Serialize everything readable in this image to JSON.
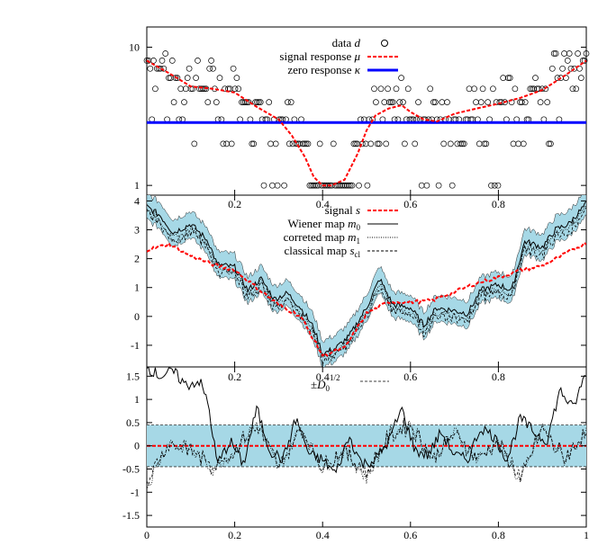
{
  "chart_data": [
    {
      "type": "scatter",
      "panel": "top",
      "y_scale": "log",
      "ylim": [
        0.85,
        14
      ],
      "xlim": [
        0,
        1
      ],
      "yticks": [
        {
          "value": 1,
          "label": "1"
        },
        {
          "value": 10,
          "label": "10"
        }
      ],
      "xticks": [
        {
          "value": 0.2,
          "label": "0.2"
        },
        {
          "value": 0.4,
          "label": "0.4"
        },
        {
          "value": 0.6,
          "label": "0.6"
        },
        {
          "value": 0.8,
          "label": "0.8"
        }
      ],
      "legend_position": "top-center",
      "legend": [
        {
          "label": "data d",
          "style": "circle"
        },
        {
          "label": "signal response μ",
          "style": "red-dashed"
        },
        {
          "label": "zero response κ",
          "style": "blue-solid"
        }
      ],
      "signal_response": {
        "x": [
          0,
          0.05,
          0.1,
          0.15,
          0.2,
          0.25,
          0.3,
          0.33,
          0.36,
          0.38,
          0.4,
          0.42,
          0.45,
          0.48,
          0.5,
          0.52,
          0.55,
          0.58,
          0.6,
          0.63,
          0.66,
          0.7,
          0.75,
          0.8,
          0.85,
          0.9,
          0.95,
          1
        ],
        "y": [
          8.0,
          6.5,
          5.2,
          5.0,
          4.7,
          3.7,
          3.0,
          2.3,
          1.6,
          1.15,
          1.0,
          1.0,
          1.1,
          1.7,
          2.5,
          3.2,
          3.6,
          3.8,
          3.4,
          3.0,
          2.9,
          3.3,
          3.6,
          3.9,
          4.3,
          4.9,
          6.2,
          8.0
        ]
      },
      "zero_response": 2.85,
      "data_levels": [
        1,
        2,
        3,
        4,
        5,
        6,
        7,
        8,
        9
      ]
    },
    {
      "type": "line",
      "panel": "middle",
      "ylim": [
        -1.75,
        4.2
      ],
      "xlim": [
        0,
        1
      ],
      "yticks": [
        {
          "value": -1,
          "label": "-1"
        },
        {
          "value": 0,
          "label": "0"
        },
        {
          "value": 1,
          "label": "1"
        },
        {
          "value": 2,
          "label": "2"
        },
        {
          "value": 3,
          "label": "3"
        },
        {
          "value": 4,
          "label": "4"
        }
      ],
      "xticks": [
        {
          "value": 0.2,
          "label": "0.2"
        },
        {
          "value": 0.4,
          "label": "0.4"
        },
        {
          "value": 0.6,
          "label": "0.6"
        },
        {
          "value": 0.8,
          "label": "0.8"
        }
      ],
      "legend_position": "top-right",
      "legend": [
        {
          "label": "signal s",
          "style": "red-dashed"
        },
        {
          "label": "Wiener map m0",
          "style": "solid"
        },
        {
          "label": "correted map m1",
          "style": "dotted"
        },
        {
          "label": "classical map scl",
          "style": "short-dashed"
        }
      ],
      "signal": {
        "x": [
          0,
          0.05,
          0.1,
          0.15,
          0.2,
          0.25,
          0.3,
          0.35,
          0.4,
          0.45,
          0.5,
          0.55,
          0.6,
          0.65,
          0.7,
          0.75,
          0.8,
          0.85,
          0.9,
          0.95,
          1
        ],
        "y": [
          2.3,
          2.5,
          2.1,
          1.8,
          1.6,
          1.0,
          0.4,
          0.0,
          -1.35,
          -1.1,
          0.1,
          0.5,
          0.5,
          0.55,
          0.85,
          1.15,
          1.35,
          1.6,
          1.75,
          2.15,
          2.55
        ]
      },
      "wiener": {
        "x": [
          0,
          0.03,
          0.06,
          0.1,
          0.14,
          0.16,
          0.2,
          0.23,
          0.26,
          0.29,
          0.32,
          0.35,
          0.38,
          0.4,
          0.43,
          0.46,
          0.5,
          0.53,
          0.56,
          0.6,
          0.63,
          0.66,
          0.7,
          0.73,
          0.76,
          0.8,
          0.83,
          0.86,
          0.9,
          0.93,
          0.96,
          1
        ],
        "y": [
          3.8,
          3.5,
          2.9,
          3.2,
          2.6,
          1.8,
          1.7,
          0.9,
          1.3,
          0.6,
          0.8,
          0.3,
          -0.4,
          -1.3,
          -1.1,
          -0.7,
          0.3,
          1.3,
          0.4,
          0.3,
          -0.3,
          0.3,
          0.2,
          0.1,
          0.9,
          1.1,
          0.9,
          2.6,
          2.4,
          3.0,
          3.2,
          3.9
        ]
      },
      "wiener_band_halfwidth": 0.45
    },
    {
      "type": "line",
      "panel": "bottom",
      "ylim": [
        -1.75,
        1.7
      ],
      "xlim": [
        0,
        1
      ],
      "yticks": [
        {
          "value": -1.5,
          "label": "-1.5"
        },
        {
          "value": -1,
          "label": "-1"
        },
        {
          "value": -0.5,
          "label": "-0.5"
        },
        {
          "value": 0,
          "label": "0"
        },
        {
          "value": 0.5,
          "label": "0.5"
        },
        {
          "value": 1,
          "label": "1"
        },
        {
          "value": 1.5,
          "label": "1.5"
        }
      ],
      "xticks": [
        {
          "value": 0,
          "label": "0"
        },
        {
          "value": 0.2,
          "label": "0.2"
        },
        {
          "value": 0.4,
          "label": "0.4"
        },
        {
          "value": 0.6,
          "label": "0.6"
        },
        {
          "value": 0.8,
          "label": "0.8"
        },
        {
          "value": 1,
          "label": "1"
        }
      ],
      "legend_position": "top-center",
      "legend": [
        {
          "label": "±D0^1/2",
          "style": "thin-dashed"
        }
      ],
      "band_halfwidth": 0.45,
      "residual_wiener": {
        "x": [
          0,
          0.03,
          0.06,
          0.09,
          0.12,
          0.14,
          0.16,
          0.19,
          0.22,
          0.25,
          0.28,
          0.31,
          0.34,
          0.37,
          0.4,
          0.43,
          0.46,
          0.49,
          0.52,
          0.55,
          0.58,
          0.61,
          0.64,
          0.67,
          0.7,
          0.73,
          0.76,
          0.79,
          0.82,
          0.85,
          0.88,
          0.91,
          0.94,
          0.97,
          1
        ],
        "y": [
          1.7,
          1.5,
          1.6,
          1.3,
          1.4,
          0.9,
          -0.4,
          0.1,
          -0.4,
          0.8,
          -0.1,
          -0.3,
          0.6,
          -0.2,
          -0.3,
          -0.6,
          0.2,
          -0.4,
          -0.3,
          0.1,
          0.8,
          -0.1,
          -0.2,
          0.3,
          -0.2,
          -0.3,
          0.4,
          0.2,
          -0.3,
          0.6,
          0.3,
          0.1,
          1.2,
          0.8,
          1.6
        ]
      },
      "residual_corrected": {
        "x": [
          0,
          0.05,
          0.1,
          0.15,
          0.2,
          0.25,
          0.3,
          0.35,
          0.4,
          0.45,
          0.5,
          0.55,
          0.6,
          0.65,
          0.7,
          0.75,
          0.8,
          0.85,
          0.9,
          0.95,
          1
        ],
        "y": [
          -0.9,
          0.1,
          -0.1,
          -0.5,
          -0.1,
          0.5,
          -0.5,
          0.4,
          -0.5,
          -0.1,
          -0.7,
          0.2,
          0.5,
          -0.3,
          0.3,
          -0.3,
          0.1,
          -0.8,
          0.4,
          -0.3,
          0.3
        ]
      }
    }
  ],
  "labels": {
    "top_legend_1": "data",
    "top_legend_1_sym": "d",
    "top_legend_2": "signal response",
    "top_legend_2_sym": "μ",
    "top_legend_3": "zero response",
    "top_legend_3_sym": "κ",
    "mid_legend_1": "signal",
    "mid_legend_1_sym": "s",
    "mid_legend_2": "Wiener map",
    "mid_legend_2_sym": "m",
    "mid_legend_2_sub": "0",
    "mid_legend_3": "correted map",
    "mid_legend_3_sym": "m",
    "mid_legend_3_sub": "1",
    "mid_legend_4": "classical map",
    "mid_legend_4_sym": "s",
    "mid_legend_4_sub": "cl",
    "bot_legend_pm": "±",
    "bot_legend_sym": "D",
    "bot_legend_sub": "0",
    "bot_legend_sup": "1/2"
  },
  "colors": {
    "band": "#a6d8e6",
    "signal": "#ff0000",
    "zero": "#0000ff",
    "line": "#000000"
  }
}
